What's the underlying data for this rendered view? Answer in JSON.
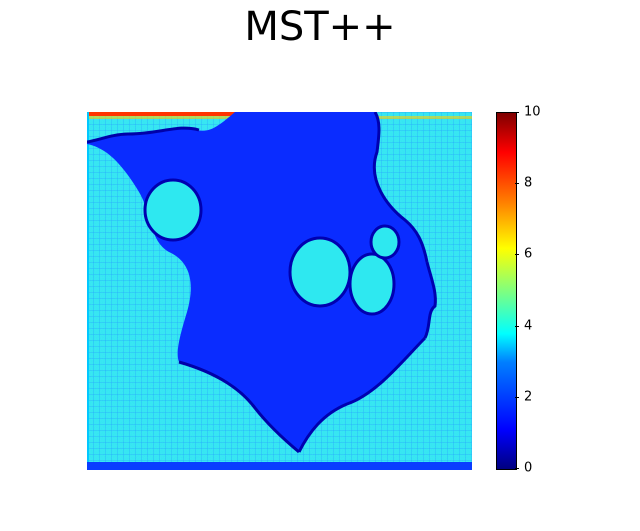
{
  "title": "MST++",
  "chart_data": {
    "type": "heatmap",
    "title": "MST++",
    "xlabel": "",
    "ylabel": "",
    "axes_visible": false,
    "colormap": "jet",
    "colorbar": {
      "vmin": 0,
      "vmax": 10,
      "ticks": [
        0,
        2,
        4,
        6,
        8,
        10
      ],
      "tick_labels": [
        "0",
        "2",
        "4",
        "6",
        "8",
        "10"
      ],
      "placement": "right"
    },
    "approx_values": {
      "background_region": 4.0,
      "central_dark_region": 1.5,
      "inner_blobs": 3.8,
      "boundary_edges": 1.0,
      "top_edge_hotspot": 9.5,
      "bottom_edge": 1.2
    }
  }
}
